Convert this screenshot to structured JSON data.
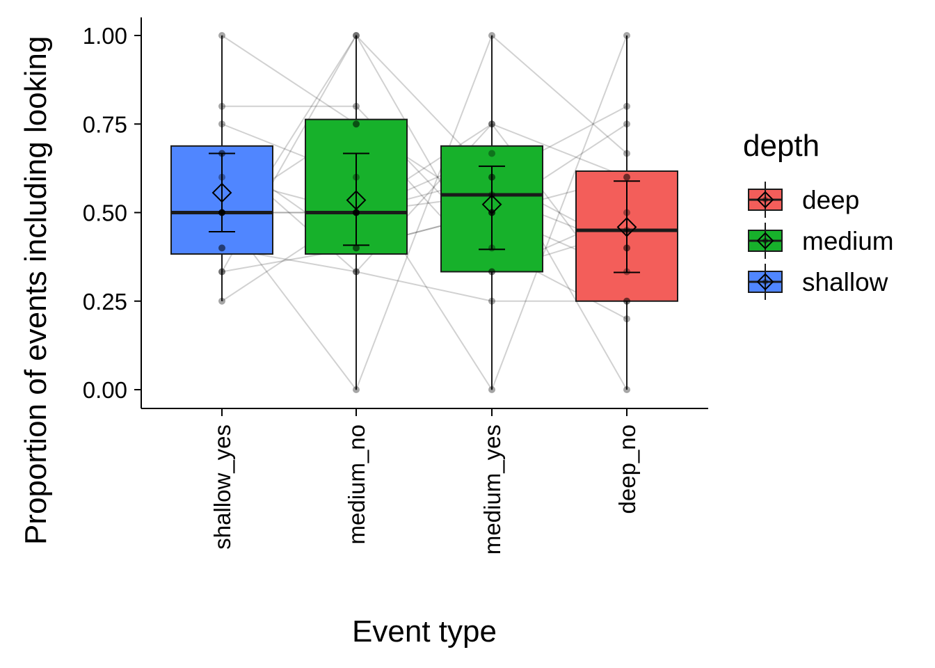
{
  "chart_data": {
    "type": "box",
    "title": "",
    "xlabel": "Event type",
    "ylabel": "Proportion of events including looking",
    "ylim": [
      -0.05,
      1.05
    ],
    "yticks": [
      "0.00",
      "0.25",
      "0.50",
      "0.75",
      "1.00"
    ],
    "yticks_values": [
      0,
      0.25,
      0.5,
      0.75,
      1.0
    ],
    "categories": [
      "shallow_yes",
      "medium_no",
      "medium_yes",
      "deep_no"
    ],
    "category_depth": [
      "shallow",
      "medium",
      "medium",
      "deep"
    ],
    "grid": false,
    "legend": {
      "title": "depth",
      "placement": "right",
      "entries": [
        {
          "label": "deep",
          "color": "#F35E5A"
        },
        {
          "label": "medium",
          "color": "#17B12B"
        },
        {
          "label": "shallow",
          "color": "#5086FF"
        }
      ]
    },
    "boxes": [
      {
        "category": "shallow_yes",
        "q1": 0.383,
        "median": 0.5,
        "q3": 0.688,
        "mean": 0.556,
        "ci_low": 0.446,
        "ci_high": 0.667,
        "min": 0.25,
        "max": 1.0
      },
      {
        "category": "medium_no",
        "q1": 0.383,
        "median": 0.5,
        "q3": 0.763,
        "mean": 0.535,
        "ci_low": 0.408,
        "ci_high": 0.667,
        "min": 0.0,
        "max": 1.0
      },
      {
        "category": "medium_yes",
        "q1": 0.333,
        "median": 0.55,
        "q3": 0.688,
        "mean": 0.523,
        "ci_low": 0.396,
        "ci_high": 0.631,
        "min": 0.0,
        "max": 1.0
      },
      {
        "category": "deep_no",
        "q1": 0.25,
        "median": 0.45,
        "q3": 0.617,
        "mean": 0.459,
        "ci_low": 0.331,
        "ci_high": 0.589,
        "min": 0.0,
        "max": 1.0
      }
    ],
    "subjects": [
      [
        0.5,
        0.5,
        0.6,
        0.4
      ],
      [
        0.4,
        0.333,
        0.25,
        0.25
      ],
      [
        1.0,
        0.75,
        0.5,
        0.333
      ],
      [
        0.25,
        0.5,
        0.75,
        0.6
      ],
      [
        0.333,
        1.0,
        0.333,
        0.5
      ],
      [
        0.6,
        0.5,
        0.667,
        0.0
      ],
      [
        0.667,
        0.4,
        0.5,
        0.75
      ],
      [
        0.8,
        0.8,
        0.4,
        0.2
      ],
      [
        0.5,
        0.0,
        1.0,
        0.667
      ],
      [
        0.75,
        0.6,
        0.0,
        1.0
      ],
      [
        0.5,
        0.5,
        0.55,
        0.4
      ],
      [
        0.4,
        1.0,
        0.6,
        0.8
      ],
      [
        0.667,
        0.333,
        0.75,
        0.25
      ],
      [
        0.5,
        0.75,
        0.333,
        0.45
      ],
      [
        0.333,
        0.4,
        0.5,
        0.6
      ]
    ]
  }
}
